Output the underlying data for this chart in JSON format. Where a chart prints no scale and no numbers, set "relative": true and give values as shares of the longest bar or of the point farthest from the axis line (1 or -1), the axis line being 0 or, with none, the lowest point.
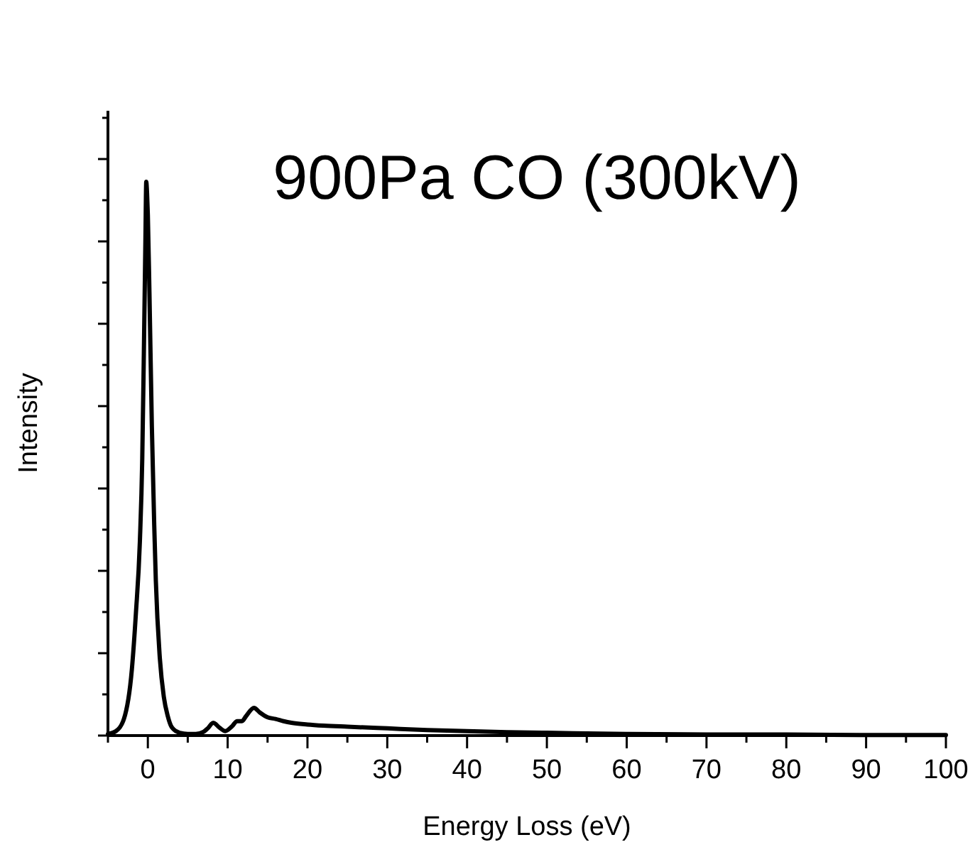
{
  "chart_data": {
    "type": "line",
    "title": "900Pa CO (300kV)",
    "xlabel": "Energy Loss (eV)",
    "ylabel": "Intensity",
    "relative": true,
    "xlim": [
      -5,
      100
    ],
    "xticks": [
      {
        "value": -5,
        "label": null
      },
      0,
      {
        "value": 5,
        "label": null
      },
      10,
      {
        "value": 15,
        "label": null
      },
      20,
      {
        "value": 25,
        "label": null
      },
      30,
      {
        "value": 35,
        "label": null
      },
      40,
      {
        "value": 45,
        "label": null
      },
      50,
      {
        "value": 55,
        "label": null
      },
      60,
      {
        "value": 65,
        "label": null
      },
      70,
      {
        "value": 75,
        "label": null
      },
      80,
      {
        "value": 85,
        "label": null
      },
      90,
      {
        "value": 95,
        "label": null
      },
      100
    ],
    "grid": false,
    "marker": "none",
    "line_style": "solid",
    "series": [
      {
        "color": "#000000",
        "x": [
          -5,
          -4,
          -3,
          -2,
          -1.5,
          -1,
          -0.7,
          -0.5,
          -0.3,
          -0.2,
          -0.1,
          0,
          0.2,
          0.5,
          0.8,
          1,
          1.5,
          2,
          2.5,
          3,
          4,
          5,
          6,
          7,
          7.5,
          8.2,
          9,
          9.7,
          10.5,
          11.2,
          11.8,
          12.3,
          13.3,
          14,
          15,
          16,
          17,
          18,
          20,
          22,
          25,
          30,
          35,
          40,
          45,
          50,
          60,
          70,
          80,
          90,
          100
        ],
        "values": [
          0.003,
          0.008,
          0.03,
          0.12,
          0.22,
          0.35,
          0.5,
          0.69,
          0.9,
          1,
          0.98,
          0.94,
          0.8,
          0.56,
          0.38,
          0.28,
          0.14,
          0.07,
          0.035,
          0.015,
          0.005,
          0.003,
          0.003,
          0.007,
          0.013,
          0.023,
          0.014,
          0.008,
          0.016,
          0.026,
          0.026,
          0.035,
          0.05,
          0.042,
          0.033,
          0.03,
          0.026,
          0.023,
          0.02,
          0.018,
          0.016,
          0.013,
          0.01,
          0.008,
          0.006,
          0.005,
          0.003,
          0.002,
          0.002,
          0.001,
          0.001
        ]
      }
    ]
  }
}
